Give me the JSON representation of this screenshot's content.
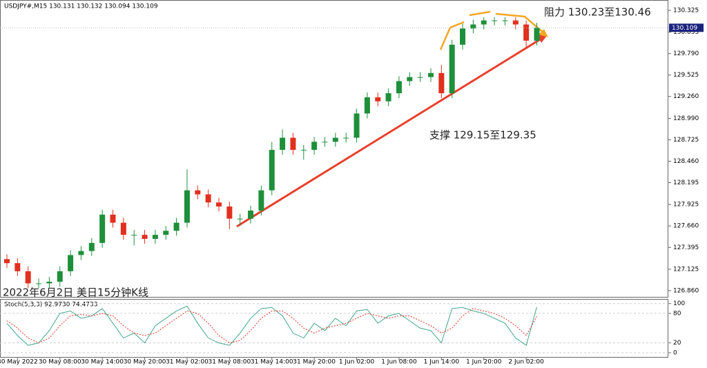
{
  "chart_data": [
    {
      "type": "candlestick",
      "title": "USDJPY#,M15  130.131 130.132 130.094 130.109",
      "x": [
        null,
        "30 May 2022",
        null,
        null,
        null,
        "30 May 08:00",
        null,
        null,
        null,
        "30 May 14:00",
        null,
        null,
        null,
        "30 May 20:00",
        null,
        null,
        null,
        "31 May 02:00",
        null,
        null,
        null,
        "31 May 08:00",
        null,
        null,
        null,
        "31 May 14:00",
        null,
        null,
        null,
        "31 May 20:00",
        null,
        null,
        null,
        "1 Jun 02:00",
        null,
        null,
        null,
        "1 Jun 08:00",
        null,
        null,
        null,
        "1 Jun 14:00",
        null,
        null,
        null,
        "1 Jun 20:00",
        null,
        null,
        null,
        "2 Jun 02:00",
        null
      ],
      "open": [
        127.25,
        127.2,
        127.1,
        126.95,
        126.95,
        126.97,
        127.1,
        127.3,
        127.35,
        127.45,
        127.8,
        127.7,
        127.55,
        127.55,
        127.5,
        127.55,
        127.6,
        127.7,
        128.1,
        128.05,
        127.95,
        127.9,
        127.75,
        127.75,
        127.85,
        128.1,
        128.6,
        128.75,
        128.6,
        128.6,
        128.7,
        128.7,
        128.75,
        128.75,
        129.05,
        129.25,
        129.2,
        129.3,
        129.45,
        129.5,
        129.5,
        129.55,
        129.3,
        129.9,
        130.1,
        130.15,
        130.2,
        130.2,
        130.2,
        130.15,
        129.95
      ],
      "high": [
        127.31,
        127.26,
        127.16,
        127.01,
        127.03,
        127.16,
        127.36,
        127.41,
        127.51,
        127.86,
        127.86,
        127.76,
        127.61,
        127.61,
        127.61,
        127.66,
        127.76,
        128.36,
        128.16,
        128.11,
        128.01,
        127.96,
        127.81,
        127.91,
        128.16,
        128.7,
        128.85,
        128.81,
        128.66,
        128.76,
        128.76,
        128.81,
        128.81,
        129.11,
        129.31,
        129.31,
        129.36,
        129.51,
        129.56,
        129.56,
        129.61,
        129.65,
        129.96,
        130.16,
        130.21,
        130.24,
        130.24,
        130.24,
        130.24,
        130.2,
        130.17
      ],
      "low": [
        127.14,
        127.04,
        126.89,
        126.89,
        126.89,
        126.91,
        127.04,
        127.24,
        127.29,
        127.39,
        127.64,
        127.49,
        127.42,
        127.44,
        127.44,
        127.49,
        127.54,
        127.64,
        127.99,
        127.89,
        127.84,
        127.62,
        127.66,
        127.69,
        127.79,
        128.04,
        128.54,
        128.54,
        128.48,
        128.54,
        128.64,
        128.64,
        128.69,
        128.69,
        128.99,
        129.14,
        129.14,
        129.24,
        129.39,
        129.44,
        129.44,
        129.24,
        129.24,
        129.84,
        130.04,
        130.09,
        130.14,
        130.14,
        130.09,
        129.85,
        129.89
      ],
      "close": [
        127.2,
        127.1,
        126.95,
        126.95,
        126.97,
        127.1,
        127.3,
        127.35,
        127.45,
        127.8,
        127.7,
        127.55,
        127.55,
        127.5,
        127.55,
        127.6,
        127.7,
        128.1,
        128.05,
        127.95,
        127.9,
        127.75,
        127.75,
        127.85,
        128.1,
        128.6,
        128.75,
        128.6,
        128.6,
        128.7,
        128.7,
        128.75,
        128.75,
        129.05,
        129.25,
        129.2,
        129.3,
        129.45,
        129.5,
        129.5,
        129.55,
        129.3,
        129.9,
        130.1,
        130.15,
        130.2,
        130.2,
        130.2,
        130.15,
        129.95,
        130.11
      ],
      "up_color": "#1e8f3a",
      "down_color": "#e0301e",
      "ylim": [
        126.783,
        130.427
      ],
      "yticks": [
        130.325,
        130.055,
        {
          "value": 129.79,
          "label": "129.790"
        },
        129.525,
        {
          "value": 129.26,
          "label": "129.260"
        },
        {
          "value": 128.99,
          "label": "128.990"
        },
        128.725,
        {
          "value": 128.46,
          "label": "128.460"
        },
        128.195,
        127.925,
        {
          "value": 127.66,
          "label": "127.660"
        },
        127.395,
        127.125,
        {
          "value": 126.86,
          "label": "126.860"
        }
      ],
      "last_price": 130.109,
      "annotations": [
        "阻力 130.23至130.46",
        "支撑 129.15至129.35",
        "2022年6月2日 美日15分钟K线"
      ]
    },
    {
      "type": "line",
      "title": "Stoch(5,3,3) 92.9730 74.4733",
      "series": [
        {
          "color": "#3fa58a",
          "values": [
            60,
            35,
            15,
            20,
            45,
            80,
            85,
            70,
            75,
            90,
            60,
            30,
            40,
            20,
            55,
            70,
            85,
            95,
            60,
            30,
            20,
            15,
            40,
            70,
            90,
            92,
            75,
            40,
            30,
            60,
            45,
            70,
            55,
            85,
            88,
            60,
            75,
            80,
            65,
            50,
            45,
            20,
            90,
            92,
            85,
            80,
            70,
            60,
            30,
            15,
            93
          ]
        },
        {
          "color": "#e0301e",
          "values": [
            65,
            50,
            30,
            20,
            30,
            55,
            75,
            78,
            75,
            80,
            75,
            55,
            40,
            35,
            40,
            55,
            70,
            85,
            80,
            60,
            35,
            20,
            25,
            45,
            70,
            85,
            85,
            70,
            50,
            40,
            50,
            55,
            60,
            70,
            80,
            75,
            70,
            75,
            75,
            65,
            55,
            40,
            50,
            75,
            90,
            85,
            80,
            70,
            55,
            35,
            74
          ]
        }
      ],
      "ylim": [
        -10,
        108
      ],
      "yticks": [
        100,
        80,
        20,
        0
      ]
    }
  ]
}
